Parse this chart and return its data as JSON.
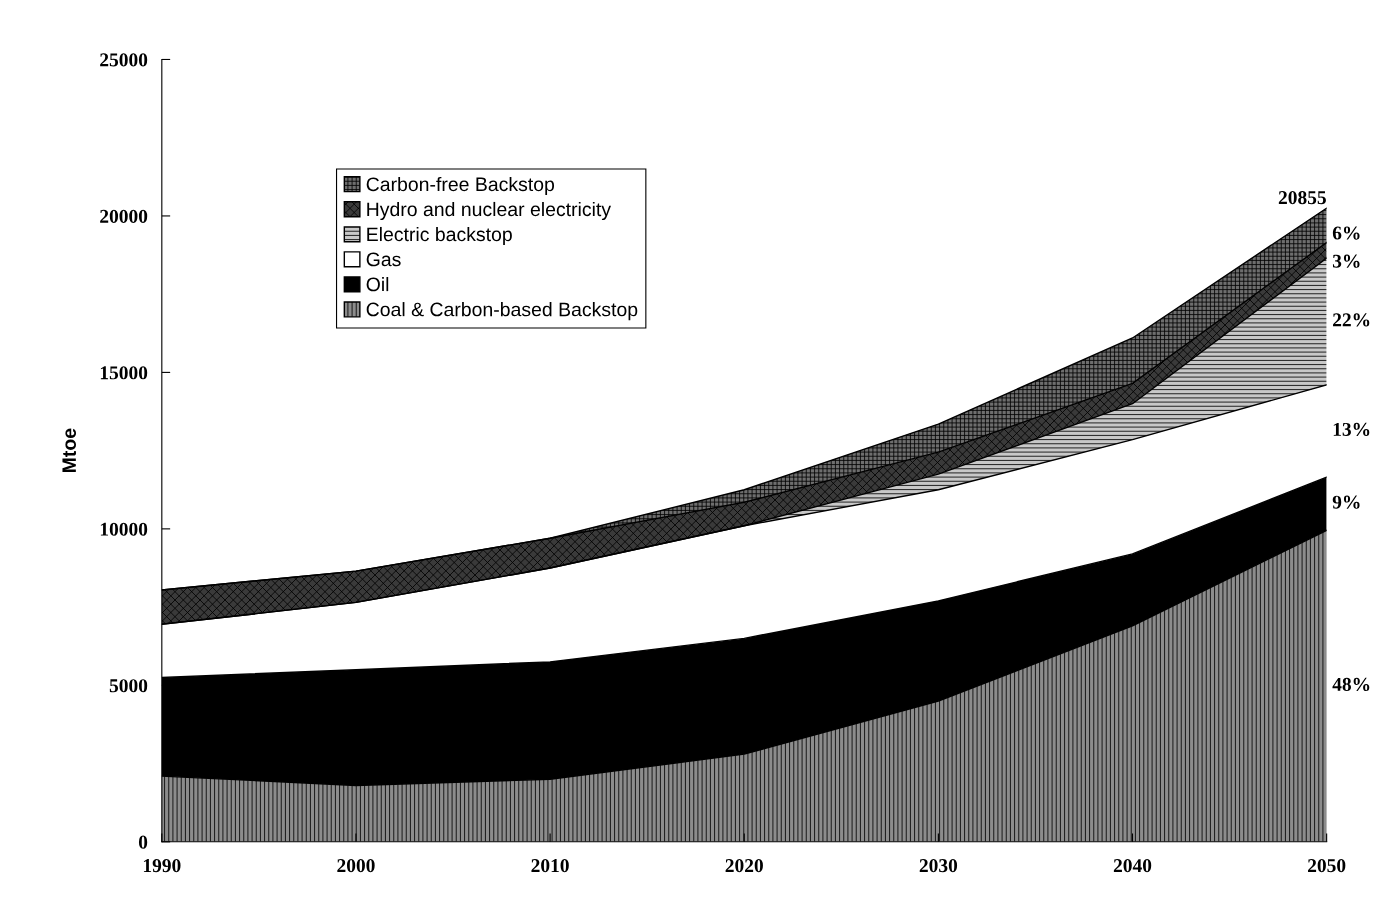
{
  "chart_data": {
    "type": "area",
    "stacked": true,
    "ylabel": "Mtoe",
    "x": [
      1990,
      2000,
      2010,
      2020,
      2030,
      2040,
      2050
    ],
    "xlim": [
      1990,
      2050
    ],
    "xticks": [
      1990,
      2000,
      2010,
      2020,
      2030,
      2040,
      2050
    ],
    "ylim": [
      0,
      25000
    ],
    "yticks": [
      0,
      5000,
      10000,
      15000,
      20000,
      25000
    ],
    "grid": false,
    "legend": "top left",
    "series": [
      {
        "name": "Coal & Carbon-based Backstop",
        "color": "#8c8c8c",
        "values": [
          2100,
          1800,
          2000,
          2800,
          4500,
          6900,
          9950
        ]
      },
      {
        "name": "Oil",
        "color": "#000000",
        "values": [
          3150,
          3700,
          3750,
          3700,
          3200,
          2300,
          1700
        ]
      },
      {
        "name": "Gas",
        "color": "#ffffff",
        "values": [
          1700,
          2150,
          3000,
          3600,
          3550,
          3650,
          2950
        ]
      },
      {
        "name": "Electric backstop",
        "color": "#c8c8c8",
        "values": [
          0,
          0,
          0,
          0,
          500,
          1150,
          4050
        ]
      },
      {
        "name": "Hydro and nuclear electricity",
        "color": "#3a3a3a",
        "values": [
          1100,
          1000,
          950,
          750,
          700,
          650,
          500
        ]
      },
      {
        "name": "Carbon-free Backstop",
        "color": "#6e6e6e",
        "values": [
          0,
          0,
          0,
          400,
          900,
          1450,
          1100
        ]
      }
    ],
    "annotations": [
      "20855",
      "48%",
      "9%",
      "13%",
      "22%",
      "3%",
      "6%"
    ]
  }
}
